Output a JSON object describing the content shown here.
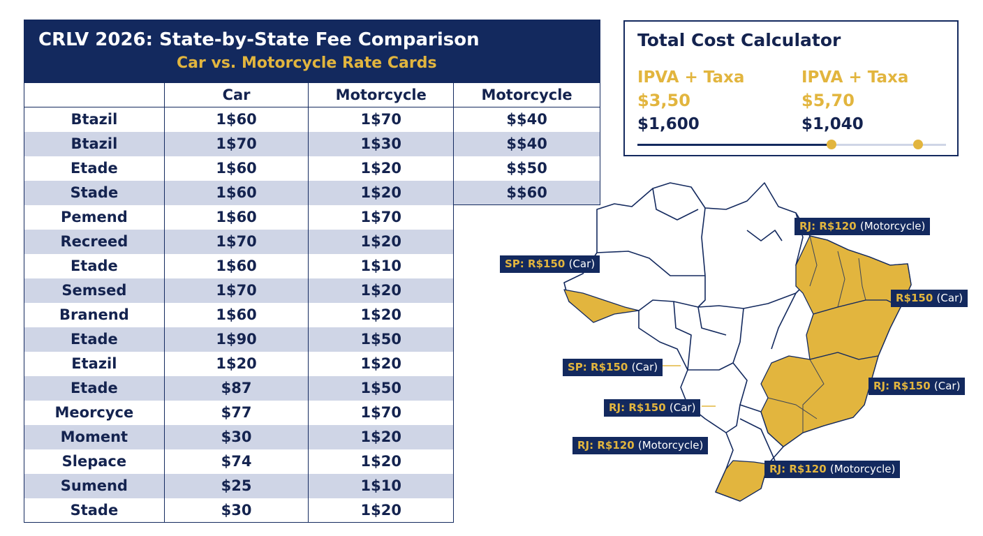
{
  "table": {
    "title": "CRLV 2026: State-by-State Fee Comparison",
    "subtitle": "Car vs. Motorcycle Rate Cards",
    "headers": [
      "",
      "Car",
      "Motorcycle",
      "Motorcycle"
    ],
    "rows": [
      {
        "state": "Btazil",
        "car": "1$60",
        "moto": "1$70",
        "moto2": "$$40"
      },
      {
        "state": "Btazil",
        "car": "1$70",
        "moto": "1$30",
        "moto2": "$$40"
      },
      {
        "state": "Etade",
        "car": "1$60",
        "moto": "1$20",
        "moto2": "$$50"
      },
      {
        "state": "Stade",
        "car": "1$60",
        "moto": "1$20",
        "moto2": "$$60"
      },
      {
        "state": "Pemend",
        "car": "1$60",
        "moto": "1$70"
      },
      {
        "state": "Recreed",
        "car": "1$70",
        "moto": "1$20"
      },
      {
        "state": "Etade",
        "car": "1$60",
        "moto": "1$10"
      },
      {
        "state": "Semsed",
        "car": "1$70",
        "moto": "1$20"
      },
      {
        "state": "Branend",
        "car": "1$60",
        "moto": "1$20"
      },
      {
        "state": "Etade",
        "car": "1$90",
        "moto": "1$50"
      },
      {
        "state": "Etazil",
        "car": "1$20",
        "moto": "1$20"
      },
      {
        "state": "Etade",
        "car": "$87",
        "moto": "1$50"
      },
      {
        "state": "Meorcyce",
        "car": "$77",
        "moto": "1$70"
      },
      {
        "state": "Moment",
        "car": "$30",
        "moto": "1$20"
      },
      {
        "state": "Slepace",
        "car": "$74",
        "moto": "1$20"
      },
      {
        "state": "Sumend",
        "car": "$25",
        "moto": "1$10"
      },
      {
        "state": "Stade",
        "car": "$30",
        "moto": "1$20"
      }
    ]
  },
  "calculator": {
    "title": "Total Cost Calculator",
    "columns": [
      {
        "label": "IPVA + Taxa",
        "rate": "$3,50",
        "total": "$1,600"
      },
      {
        "label": "IPVA + Taxa",
        "rate": "$5,70",
        "total": "$1,040"
      }
    ],
    "slider": {
      "fill_fraction": 0.63,
      "knobs": [
        0.63,
        0.91
      ]
    }
  },
  "map": {
    "labels": [
      {
        "prefix": "RJ: R$120",
        "note": "(Motorcycle)"
      },
      {
        "prefix": "SP: R$150",
        "note": "(Car)"
      },
      {
        "prefix": "R$150",
        "note": "(Car)"
      },
      {
        "prefix": "SP: R$150",
        "note": "(Car)"
      },
      {
        "prefix": "RJ: R$150",
        "note": "(Car)"
      },
      {
        "prefix": "RJ: R$150",
        "note": "(Car)"
      },
      {
        "prefix": "RJ: R$120",
        "note": "(Motorcycle)"
      },
      {
        "prefix": "RJ: R$120",
        "note": "(Motorcycle)"
      }
    ]
  },
  "colors": {
    "navy": "#13295e",
    "gold": "#e2b53e",
    "alt_row": "#cfd5e6"
  }
}
